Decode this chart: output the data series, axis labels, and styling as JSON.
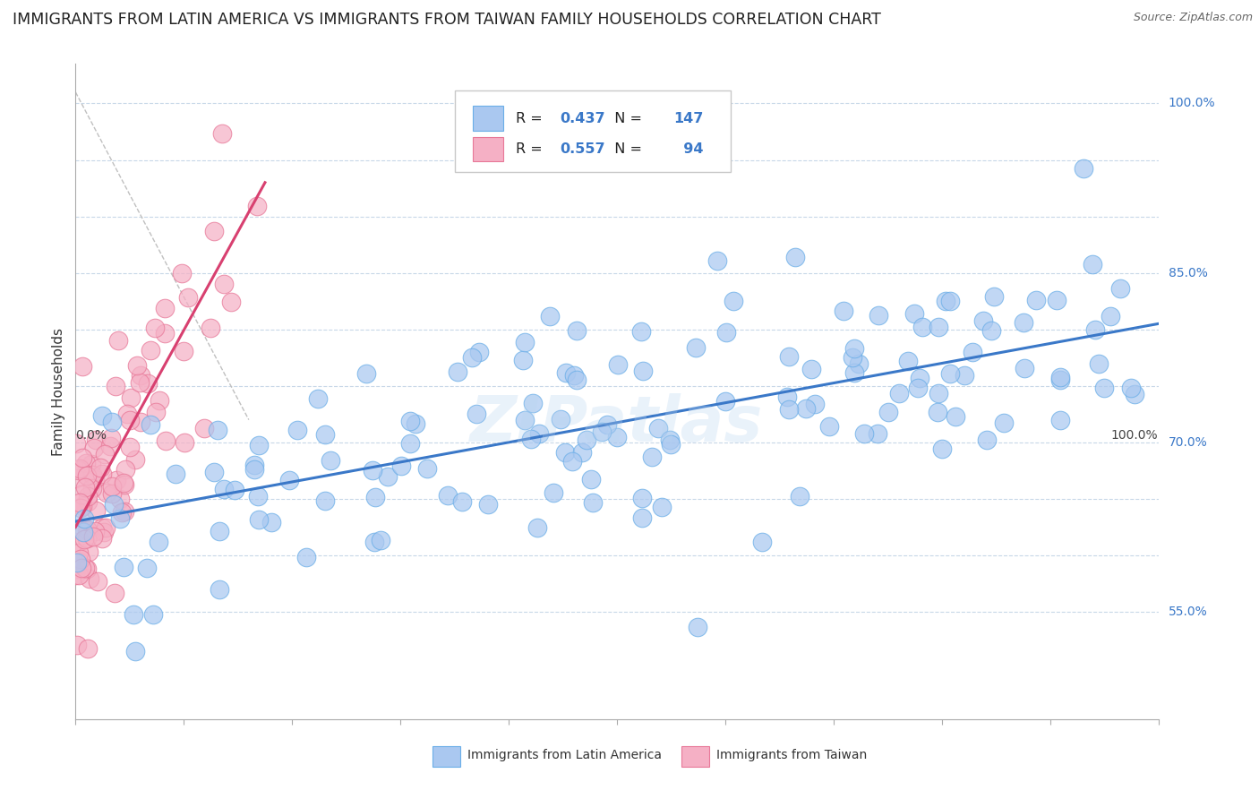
{
  "title": "IMMIGRANTS FROM LATIN AMERICA VS IMMIGRANTS FROM TAIWAN FAMILY HOUSEHOLDS CORRELATION CHART",
  "source": "Source: ZipAtlas.com",
  "ylabel": "Family Households",
  "blue_R": 0.437,
  "blue_N": 147,
  "pink_R": 0.557,
  "pink_N": 94,
  "blue_color": "#aac8f0",
  "blue_edge": "#6aaee8",
  "pink_color": "#f5b0c5",
  "pink_edge": "#e87898",
  "blue_line_color": "#3a78c8",
  "pink_line_color": "#d84070",
  "watermark": "ZIPatlas",
  "legend_blue_label": "Immigrants from Latin America",
  "legend_pink_label": "Immigrants from Taiwan",
  "background_color": "#ffffff",
  "grid_color": "#c8d8e8",
  "title_fontsize": 12.5,
  "axis_label_fontsize": 11,
  "tick_fontsize": 10,
  "xlim": [
    0.0,
    1.0
  ],
  "ylim": [
    0.455,
    1.035
  ],
  "blue_line_x0": 0.0,
  "blue_line_x1": 1.0,
  "blue_line_y0": 0.63,
  "blue_line_y1": 0.805,
  "pink_line_x0": 0.0,
  "pink_line_x1": 0.175,
  "pink_line_y0": 0.625,
  "pink_line_y1": 0.93,
  "ref_line_x0": 0.0,
  "ref_line_x1": 0.16,
  "ref_line_y0": 1.01,
  "ref_line_y1": 0.72
}
